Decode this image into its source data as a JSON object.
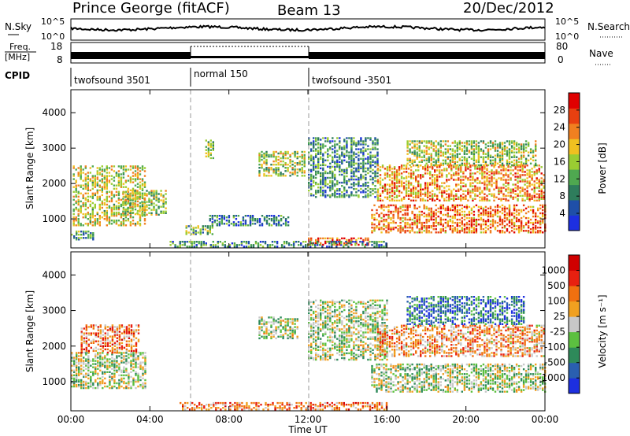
{
  "header": {
    "site": "Prince George (fitACF)",
    "beam": "Beam 13",
    "date": "20/Dec/2012"
  },
  "noise_panel": {
    "left_label": "N.Sky",
    "left_ticks": [
      "10^5",
      "10^0"
    ],
    "right_label": "N.Search",
    "right_ticks": [
      "10^5",
      "10^0"
    ]
  },
  "freq_panel": {
    "left_label_1": "Freq.",
    "left_label_2": "[MHz]",
    "left_ticks": [
      "18",
      "8"
    ],
    "right_label": "Nave",
    "right_ticks": [
      "80",
      "0"
    ]
  },
  "cpid": {
    "label": "CPID",
    "segments": [
      "twofsound 3501",
      "normal 150",
      "twofsound -3501"
    ]
  },
  "x_axis": {
    "label": "Time UT",
    "ticks": [
      "00:00",
      "04:00",
      "08:00",
      "12:00",
      "16:00",
      "20:00",
      "00:00"
    ]
  },
  "chart_data": [
    {
      "type": "heatmap",
      "title": "Power",
      "ylabel": "Slant Range [km]",
      "yticks": [
        "1000",
        "2000",
        "3000",
        "4000"
      ],
      "ylim": [
        180,
        4650
      ],
      "xlim_hours": [
        0,
        24
      ],
      "colorbar": {
        "label": "Power [dB]",
        "ticks": [
          "4",
          "8",
          "12",
          "16",
          "20",
          "24",
          "28"
        ],
        "colors": [
          "#1d2fe0",
          "#1f4fa8",
          "#2e7d5c",
          "#4fa850",
          "#9acd32",
          "#f0c020",
          "#f08020",
          "#e84010",
          "#e00000"
        ]
      },
      "regions": [
        {
          "t0": 0.1,
          "t1": 3.8,
          "r0": 800,
          "r1": 2500,
          "level": 0.55
        },
        {
          "t0": 0.0,
          "t1": 1.2,
          "r0": 400,
          "r1": 650,
          "level": 0.35
        },
        {
          "t0": 2.6,
          "t1": 4.8,
          "r0": 1100,
          "r1": 1800,
          "level": 0.5
        },
        {
          "t0": 5.8,
          "t1": 7.2,
          "r0": 550,
          "r1": 800,
          "level": 0.4
        },
        {
          "t0": 7.0,
          "t1": 11.0,
          "r0": 800,
          "r1": 1100,
          "level": 0.25
        },
        {
          "t0": 9.5,
          "t1": 11.8,
          "r0": 2200,
          "r1": 2900,
          "level": 0.5
        },
        {
          "t0": 6.8,
          "t1": 7.2,
          "r0": 2700,
          "r1": 3200,
          "level": 0.45
        },
        {
          "t0": 12.0,
          "t1": 15.5,
          "r0": 1600,
          "r1": 3300,
          "level": 0.3
        },
        {
          "t0": 12.0,
          "t1": 15.0,
          "r0": 250,
          "r1": 450,
          "level": 0.85
        },
        {
          "t0": 15.2,
          "t1": 24.0,
          "r0": 600,
          "r1": 1400,
          "level": 0.75
        },
        {
          "t0": 15.5,
          "t1": 24.0,
          "r0": 1500,
          "r1": 2500,
          "level": 0.7
        },
        {
          "t0": 17.0,
          "t1": 23.5,
          "r0": 2500,
          "r1": 3200,
          "level": 0.5
        },
        {
          "t0": 5.0,
          "t1": 16.0,
          "r0": 200,
          "r1": 380,
          "level": 0.3
        }
      ]
    },
    {
      "type": "heatmap",
      "title": "Velocity",
      "ylabel": "Slant Range [km]",
      "yticks": [
        "1000",
        "2000",
        "3000",
        "4000"
      ],
      "ylim": [
        180,
        4650
      ],
      "xlim_hours": [
        0,
        24
      ],
      "colorbar": {
        "label": "Velocity [m s⁻¹]",
        "ticks": [
          "1000",
          "500",
          "100",
          "25",
          "-25",
          "-100",
          "-500",
          "-1000"
        ],
        "colors": [
          "#1d2fe0",
          "#2a5fb0",
          "#2e8a5a",
          "#5cc040",
          "#c8c8c8",
          "#f0a020",
          "#f07010",
          "#e82010",
          "#d00000"
        ]
      },
      "regions": [
        {
          "t0": 0.0,
          "t1": 3.8,
          "r0": 800,
          "r1": 1800,
          "level": 0.45
        },
        {
          "t0": 0.5,
          "t1": 3.5,
          "r0": 1800,
          "r1": 2600,
          "level": 0.7
        },
        {
          "t0": 12.0,
          "t1": 16.0,
          "r0": 1600,
          "r1": 3300,
          "level": 0.45
        },
        {
          "t0": 15.2,
          "t1": 24.0,
          "r0": 700,
          "r1": 1500,
          "level": 0.45
        },
        {
          "t0": 15.5,
          "t1": 24.0,
          "r0": 1700,
          "r1": 2600,
          "level": 0.65
        },
        {
          "t0": 17.0,
          "t1": 23.0,
          "r0": 2600,
          "r1": 3400,
          "level": 0.2
        },
        {
          "t0": 9.5,
          "t1": 11.5,
          "r0": 2200,
          "r1": 2800,
          "level": 0.45
        },
        {
          "t0": 5.5,
          "t1": 16.0,
          "r0": 200,
          "r1": 420,
          "level": 0.7
        }
      ]
    }
  ]
}
